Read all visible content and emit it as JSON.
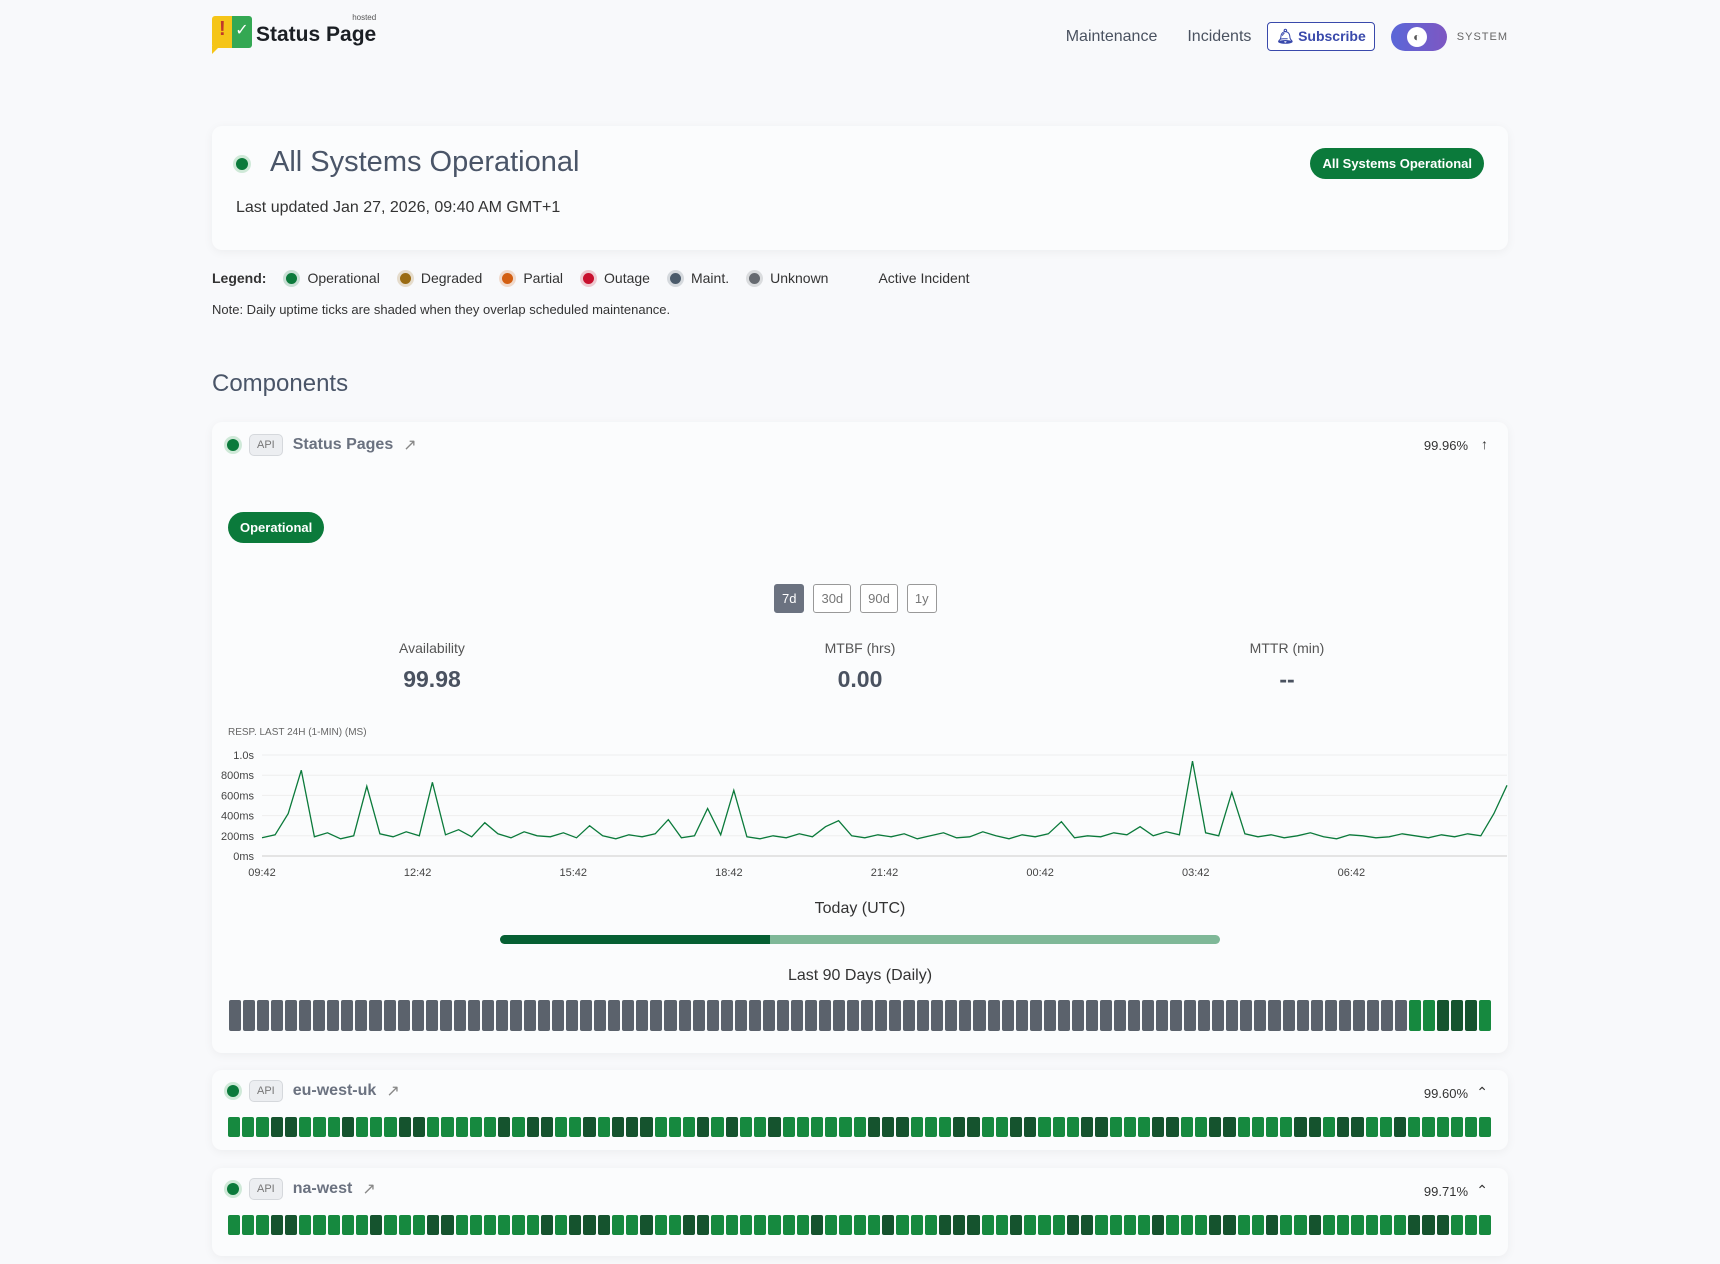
{
  "header": {
    "logo_text": "Status Page",
    "logo_sup": "hosted",
    "nav": [
      "Maintenance",
      "Incidents"
    ],
    "subscribe": "Subscribe",
    "theme_label": "SYSTEM"
  },
  "summary": {
    "title": "All Systems Operational",
    "updated": "Last updated Jan 27, 2026, 09:40 AM GMT+1",
    "badge": "All Systems Operational"
  },
  "legend": {
    "label": "Legend:",
    "items": [
      {
        "label": "Operational",
        "color": "#0b7a3b"
      },
      {
        "label": "Degraded",
        "color": "#9a6b12"
      },
      {
        "label": "Partial",
        "color": "#d35f12"
      },
      {
        "label": "Outage",
        "color": "#c8102e"
      },
      {
        "label": "Maint.",
        "color": "#4a5a6a"
      },
      {
        "label": "Unknown",
        "color": "#666a70"
      }
    ],
    "active_incident": "Active Incident",
    "note": "Note: Daily uptime ticks are shaded when they overlap scheduled maintenance."
  },
  "components_title": "Components",
  "colors": {
    "operational": "#0b7a3b",
    "unknown": "#5b626c",
    "light": "#16893f",
    "dark": "#15532e",
    "today_done": "#065f33",
    "today_rest": "#7fb898"
  },
  "components": [
    {
      "type": "API",
      "name": "Status Pages",
      "uptime": "99.96%",
      "status": "Operational",
      "ranges": [
        "7d",
        "30d",
        "90d",
        "1y"
      ],
      "active_range": "7d",
      "stats": [
        {
          "label": "Availability",
          "value": "99.98"
        },
        {
          "label": "MTBF (hrs)",
          "value": "0.00"
        },
        {
          "label": "MTTR (min)",
          "value": "--"
        }
      ],
      "today_label": "Today (UTC)",
      "today_progress": 0.375,
      "days_label": "Last 90 Days (Daily)",
      "days": "UUUUUUUUUUUUUUUUUUUUUUUUUUUUUUUUUUUUUUUUUUUUUUUUUUUUUUUUUUUUUUUUUUUUUUUUUUUUUUUUUUUULLDDDL"
    },
    {
      "type": "API",
      "name": "eu-west-uk",
      "uptime": "99.60%",
      "days": "LLLDDLLLDLLLDDLLLLLDLDDLLDLDDDLLLDLDLLDLLLLLLDDDLLLDDLLDDLLLDDLLLDDLLDDLLLLDDLDDLLDLLLLLL"
    },
    {
      "type": "API",
      "name": "na-west",
      "uptime": "99.71%",
      "days": "LLLDDLLLLLDLLLDDLLLLLLDLDDDLLDLLDDLLLLLLLDLLLLDLLLDDDLLDLLLDDLLLLDLLLDDLLDLLDLLLLLLDDDLLL"
    }
  ],
  "chart_data": {
    "type": "line",
    "title": "RESP. LAST 24H (1-MIN) (MS)",
    "ylim": [
      0,
      1000
    ],
    "y_ticks": [
      0,
      200,
      400,
      600,
      800,
      1000
    ],
    "y_tick_labels": [
      "0ms",
      "200ms",
      "400ms",
      "600ms",
      "800ms",
      "1.0s"
    ],
    "x_tick_labels": [
      "09:42",
      "12:42",
      "15:42",
      "18:42",
      "21:42",
      "00:42",
      "03:42",
      "06:42"
    ],
    "grid": true,
    "color": "#0b7a3b",
    "values": [
      180,
      210,
      420,
      850,
      190,
      230,
      170,
      200,
      690,
      220,
      190,
      240,
      200,
      730,
      210,
      260,
      190,
      330,
      220,
      180,
      240,
      200,
      190,
      230,
      180,
      300,
      200,
      170,
      210,
      190,
      220,
      360,
      180,
      200,
      470,
      210,
      650,
      190,
      170,
      200,
      180,
      220,
      190,
      290,
      350,
      200,
      180,
      210,
      190,
      220,
      170,
      200,
      230,
      180,
      190,
      240,
      200,
      170,
      210,
      190,
      220,
      340,
      180,
      200,
      190,
      230,
      210,
      290,
      200,
      240,
      210,
      940,
      230,
      200,
      630,
      220,
      190,
      210,
      180,
      200,
      230,
      190,
      170,
      210,
      200,
      180,
      190,
      220,
      200,
      180,
      210,
      190,
      220,
      200,
      420,
      700
    ]
  }
}
